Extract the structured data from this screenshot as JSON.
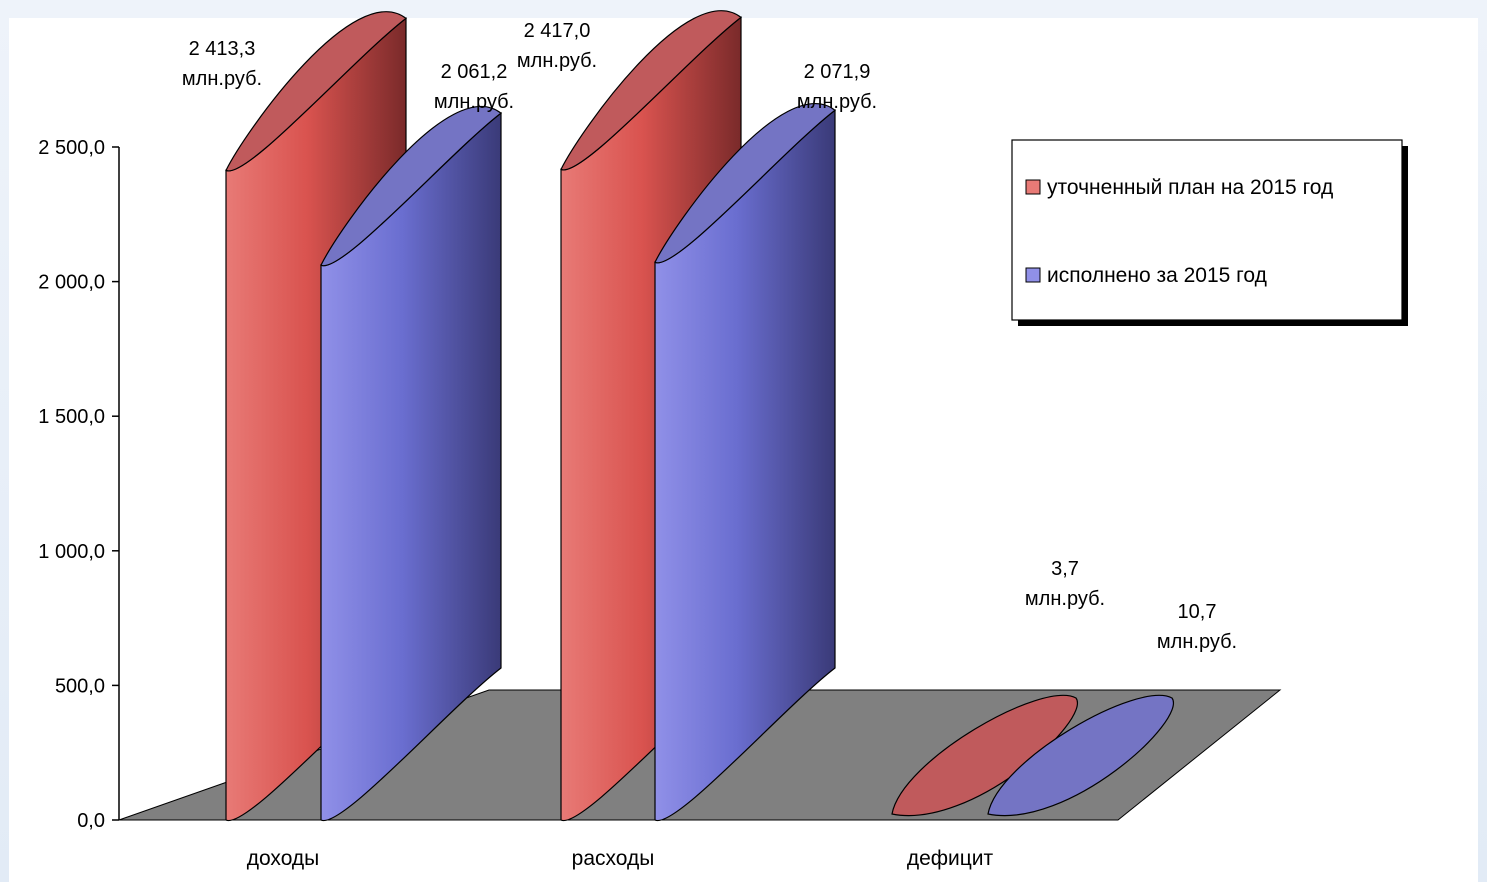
{
  "chart_data": {
    "type": "bar",
    "style": "3d-cylinder",
    "categories": [
      "доходы",
      "расходы",
      "дефицит"
    ],
    "series": [
      {
        "name": "уточненный план на 2015 год",
        "values": [
          2413.3,
          2417.0,
          3.7
        ],
        "labels": [
          "2 413,3",
          "2 417,0",
          "3,7"
        ],
        "color": "#d9534f",
        "color_light": "#e87a76",
        "color_dark": "#7a2a2a",
        "color_top": "#c05a5c"
      },
      {
        "name": "исполнено за 2015 год",
        "values": [
          2061.2,
          2071.9,
          10.7
        ],
        "labels": [
          "2 061,2",
          "2 071,9",
          "10,7"
        ],
        "color": "#6a6ed0",
        "color_light": "#9090e8",
        "color_dark": "#3a3a78",
        "color_top": "#7474c4"
      }
    ],
    "unit_label": "млн.руб.",
    "yticks": [
      "0,0",
      "500,0",
      "1 000,0",
      "1 500,0",
      "2 000,0",
      "2 500,0"
    ],
    "ytick_values": [
      0,
      500,
      1000,
      1500,
      2000,
      2500
    ],
    "ylim": [
      0,
      2500
    ],
    "legend_position": "right",
    "floor_color": "#808080",
    "grid": false
  }
}
